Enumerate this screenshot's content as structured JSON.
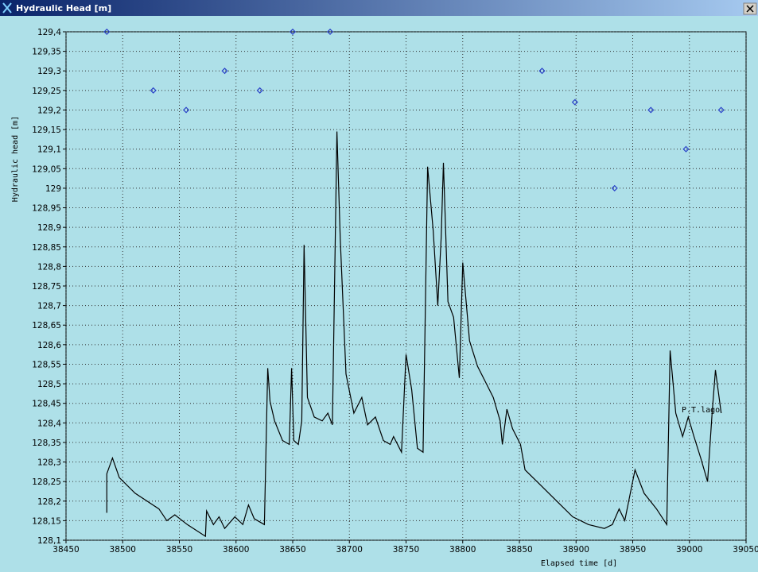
{
  "window_title": "Hydraulic Head [m]",
  "chart_data": {
    "type": "line",
    "x_label": "Elapsed time [d]",
    "y_label": "Hydraulic head [m]",
    "xlim": [
      38450,
      39050
    ],
    "ylim": [
      128.1,
      129.4
    ],
    "xticks": [
      38450,
      38500,
      38550,
      38600,
      38650,
      38700,
      38750,
      38800,
      38850,
      38900,
      38950,
      39000,
      39050
    ],
    "yticks": [
      {
        "value": 128.1,
        "label": "128,1"
      },
      {
        "value": 128.15,
        "label": "128,15"
      },
      {
        "value": 128.2,
        "label": "128,2"
      },
      {
        "value": 128.25,
        "label": "128,25"
      },
      {
        "value": 128.3,
        "label": "128,3"
      },
      {
        "value": 128.35,
        "label": "128,35"
      },
      {
        "value": 128.4,
        "label": "128,4"
      },
      {
        "value": 128.45,
        "label": "128,45"
      },
      {
        "value": 128.5,
        "label": "128,5"
      },
      {
        "value": 128.55,
        "label": "128,55"
      },
      {
        "value": 128.6,
        "label": "128,6"
      },
      {
        "value": 128.65,
        "label": "128,65"
      },
      {
        "value": 128.7,
        "label": "128,7"
      },
      {
        "value": 128.75,
        "label": "128,75"
      },
      {
        "value": 128.8,
        "label": "128,8"
      },
      {
        "value": 128.85,
        "label": "128,85"
      },
      {
        "value": 128.9,
        "label": "128,9"
      },
      {
        "value": 128.95,
        "label": "128,95"
      },
      129,
      {
        "value": 129.05,
        "label": "129,05"
      },
      {
        "value": 129.1,
        "label": "129,1"
      },
      {
        "value": 129.15,
        "label": "129,15"
      },
      {
        "value": 129.2,
        "label": "129,2"
      },
      {
        "value": 129.25,
        "label": "129,25"
      },
      {
        "value": 129.3,
        "label": "129,3"
      },
      {
        "value": 129.35,
        "label": "129,35"
      },
      {
        "value": 129.4,
        "label": "129,4"
      }
    ],
    "grid": true,
    "annotation": "P.T.lago",
    "series": [
      {
        "type": "line",
        "color": "#000000",
        "x": [
          38486,
          38486,
          38491,
          38497,
          38511,
          38532,
          38539,
          38546,
          38557,
          38573,
          38573,
          38574,
          38580,
          38585,
          38590,
          38599,
          38606,
          38611,
          38616,
          38625,
          38628,
          38630,
          38634,
          38641,
          38647,
          38649,
          38651,
          38655,
          38658,
          38660,
          38663,
          38669,
          38676,
          38681,
          38685,
          38689,
          38692,
          38697,
          38704,
          38711,
          38716,
          38723,
          38730,
          38736,
          38739,
          38746,
          38750,
          38755,
          38760,
          38765,
          38769,
          38774,
          38778,
          38781,
          38783,
          38787,
          38792,
          38797,
          38800,
          38806,
          38813,
          38820,
          38827,
          38833,
          38835,
          38839,
          38844,
          38851,
          38855,
          38869,
          38883,
          38897,
          38911,
          38925,
          38932,
          38938,
          38943,
          38952,
          38960,
          38971,
          38980,
          38983,
          38988,
          38994,
          38999,
          39004,
          39010,
          39016,
          39020,
          39023,
          39028
        ],
        "values": [
          128.17,
          128.27,
          128.31,
          128.26,
          128.22,
          128.18,
          128.15,
          128.165,
          128.14,
          128.11,
          128.11,
          128.175,
          128.14,
          128.16,
          128.13,
          128.16,
          128.14,
          128.19,
          128.155,
          128.14,
          128.54,
          128.455,
          128.405,
          128.355,
          128.345,
          128.54,
          128.355,
          128.345,
          128.405,
          128.855,
          128.465,
          128.415,
          128.405,
          128.425,
          128.395,
          129.145,
          128.87,
          128.525,
          128.425,
          128.465,
          128.395,
          128.415,
          128.355,
          128.345,
          128.365,
          128.325,
          128.575,
          128.485,
          128.335,
          128.325,
          129.055,
          128.89,
          128.7,
          128.875,
          129.065,
          128.71,
          128.67,
          128.515,
          128.81,
          128.61,
          128.545,
          128.505,
          128.465,
          128.405,
          128.345,
          128.435,
          128.385,
          128.345,
          128.28,
          128.24,
          128.2,
          128.16,
          128.14,
          128.13,
          128.14,
          128.18,
          128.15,
          128.28,
          128.22,
          128.18,
          128.14,
          128.585,
          128.425,
          128.365,
          128.415,
          128.365,
          128.31,
          128.25,
          128.425,
          128.535,
          128.425
        ]
      },
      {
        "type": "scatter",
        "color": "#2840c8",
        "x": [
          38486,
          38527,
          38556,
          38590,
          38621,
          38650,
          38683,
          38870,
          38899,
          38934,
          38966,
          38997,
          39028
        ],
        "values": [
          129.4,
          129.25,
          129.2,
          129.3,
          129.25,
          129.4,
          129.4,
          129.3,
          129.22,
          129.0,
          129.2,
          129.1,
          129.2
        ]
      }
    ]
  }
}
